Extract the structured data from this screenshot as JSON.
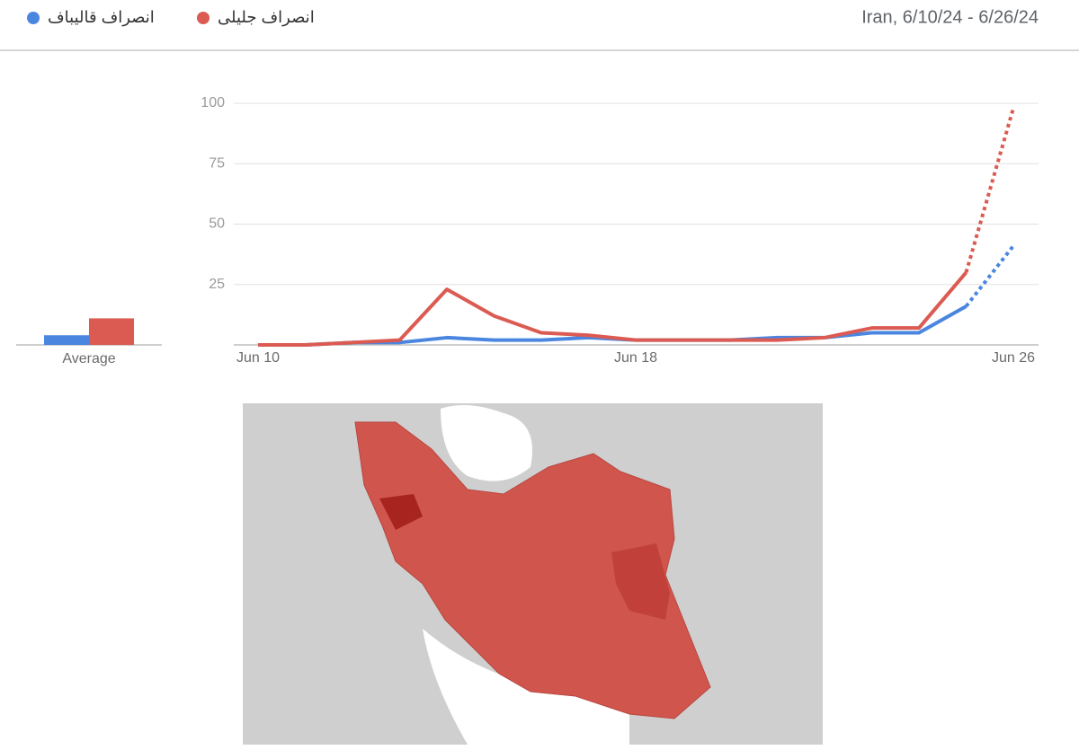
{
  "chart_data": {
    "type": "line",
    "title": "Iran, 6/10/24 - 6/26/24",
    "categories": [
      "Jun 10",
      null,
      null,
      null,
      null,
      null,
      null,
      null,
      "Jun 18",
      null,
      null,
      null,
      null,
      null,
      null,
      null,
      "Jun 26"
    ],
    "series": [
      {
        "name": "انصراف قالیباف",
        "color": "#4a86e0",
        "values": [
          0,
          0,
          1,
          1,
          3,
          2,
          2,
          3,
          2,
          2,
          2,
          3,
          3,
          5,
          5,
          16,
          41
        ],
        "average": 4
      },
      {
        "name": "انصراف جلیلی",
        "color": "#db5b52",
        "values": [
          0,
          0,
          1,
          2,
          23,
          12,
          5,
          4,
          2,
          2,
          2,
          2,
          3,
          7,
          7,
          30,
          98
        ],
        "average": 11
      }
    ],
    "average_label": "Average",
    "partial_last_segment": true,
    "ylim": [
      0,
      100
    ],
    "yticks": [
      25,
      50,
      75,
      100
    ],
    "grid": true
  }
}
